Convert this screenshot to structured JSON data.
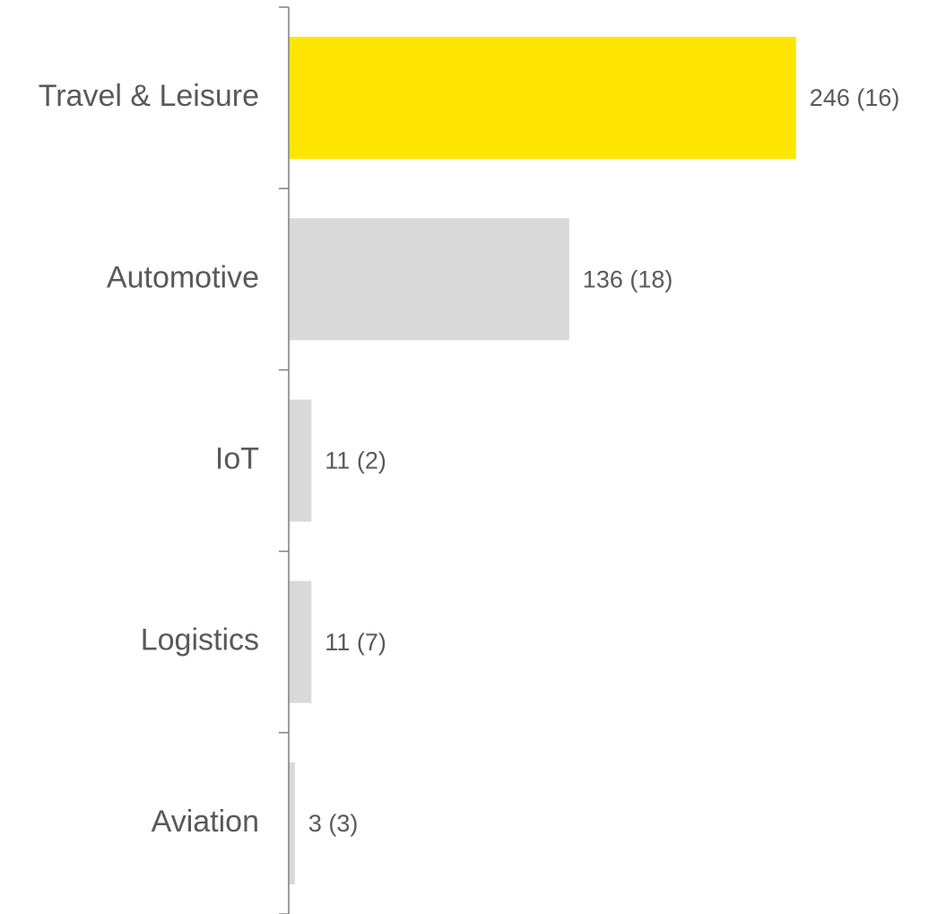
{
  "chart_data": {
    "type": "bar",
    "orientation": "horizontal",
    "categories": [
      "Travel & Leisure",
      "Automotive",
      "IoT",
      "Logistics",
      "Aviation"
    ],
    "values": [
      246,
      136,
      11,
      11,
      3
    ],
    "value_labels": [
      "246 (16)",
      "136 (18)",
      "11 (2)",
      "11 (7)",
      "3 (3)"
    ],
    "colors": [
      "#FFE600",
      "#D9D9D9",
      "#D9D9D9",
      "#D9D9D9",
      "#D9D9D9"
    ],
    "xlim": [
      0,
      300
    ]
  }
}
